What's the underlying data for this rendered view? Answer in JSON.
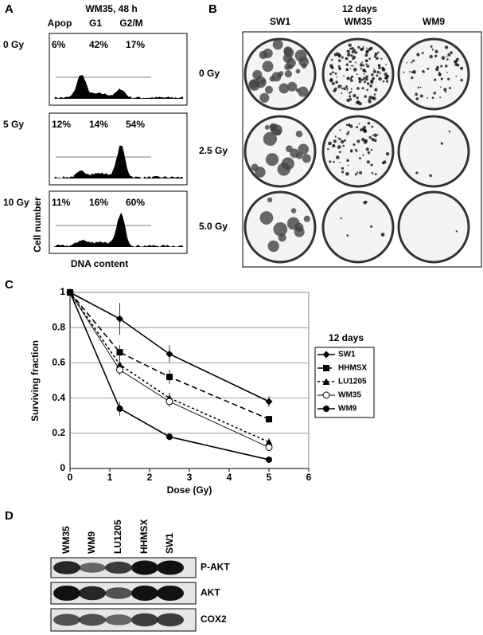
{
  "panel_a": {
    "label": "A",
    "title": "WM35, 48 h",
    "columns": [
      "Apop",
      "G1",
      "G2/M"
    ],
    "rows": [
      {
        "dose": "0 Gy",
        "values": [
          "6%",
          "42%",
          "17%"
        ]
      },
      {
        "dose": "5 Gy",
        "values": [
          "12%",
          "14%",
          "54%"
        ]
      },
      {
        "dose": "10 Gy",
        "values": [
          "11%",
          "16%",
          "60%"
        ]
      }
    ],
    "y_label": "Cell number",
    "x_label": "DNA content"
  },
  "panel_b": {
    "label": "B",
    "title": "12 days",
    "columns": [
      "SW1",
      "WM35",
      "WM9"
    ],
    "rows": [
      "0 Gy",
      "2.5 Gy",
      "5.0 Gy"
    ]
  },
  "chart_data": {
    "type": "line",
    "panel_label": "C",
    "x": [
      0,
      1.25,
      2.5,
      5
    ],
    "xlim": [
      0,
      6
    ],
    "xticks": [
      0,
      1,
      2,
      3,
      4,
      5,
      6
    ],
    "ylim": [
      0,
      1
    ],
    "yticks": [
      0,
      0.2,
      0.4,
      0.6,
      0.8,
      1
    ],
    "x_label": "Dose (Gy)",
    "y_label": "Surviving fraction",
    "legend_title": "12 days",
    "legend": "right",
    "grid": true,
    "series": [
      {
        "name": "SW1",
        "color": "#000000",
        "marker": "diamond",
        "dash": "solid",
        "values": [
          1,
          0.85,
          0.65,
          0.38
        ],
        "errors": [
          0.02,
          0.09,
          0.05,
          0.03
        ]
      },
      {
        "name": "HHMSX",
        "color": "#000000",
        "marker": "square",
        "dash": "dashed",
        "values": [
          1,
          0.66,
          0.52,
          0.28
        ],
        "errors": [
          0.02,
          0.04,
          0.04,
          0.02
        ]
      },
      {
        "name": "LU1205",
        "color": "#000000",
        "marker": "triangle",
        "dash": "short-dashed",
        "values": [
          1,
          0.59,
          0.4,
          0.15
        ],
        "errors": [
          0.02,
          0.04,
          0.03,
          0.02
        ]
      },
      {
        "name": "WM35",
        "color": "#000000",
        "marker": "open-circle",
        "dash": "thin",
        "values": [
          1,
          0.56,
          0.38,
          0.12
        ],
        "errors": [
          0.02,
          0.03,
          0.03,
          0.01
        ]
      },
      {
        "name": "WM9",
        "color": "#000000",
        "marker": "circle",
        "dash": "solid",
        "values": [
          1,
          0.34,
          0.18,
          0.05
        ],
        "errors": [
          0.02,
          0.04,
          0.02,
          0.01
        ]
      }
    ]
  },
  "panel_d": {
    "label": "D",
    "lanes": [
      "WM35",
      "WM9",
      "LU1205",
      "HHMSX",
      "SW1"
    ],
    "blots": [
      "P-AKT",
      "AKT",
      "COX2"
    ]
  }
}
